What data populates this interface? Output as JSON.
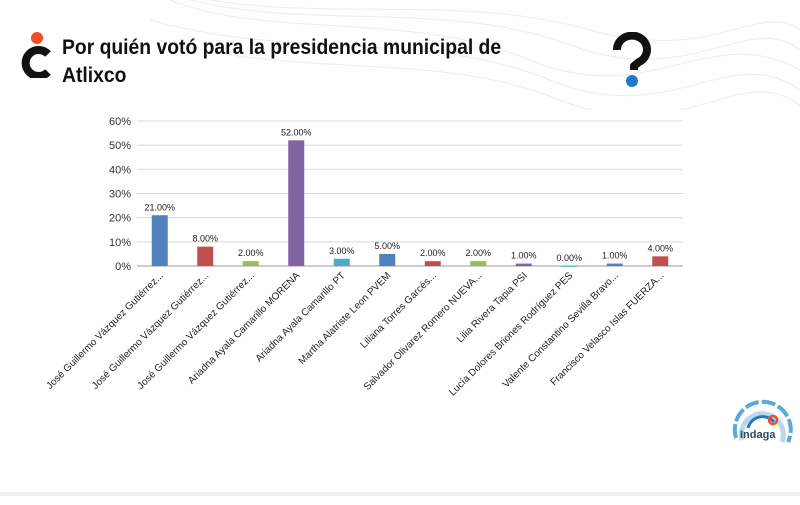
{
  "header": {
    "title": "Por quién votó para la presidencia municipal de Atlixco",
    "left_logo_icon": "inverted-question-mark-icon",
    "right_logo_icon": "question-mark-icon"
  },
  "brand": {
    "name": "Indaga",
    "logo_icon": "indaga-circles-logo-icon",
    "colors": {
      "dark": "#111111",
      "orange": "#f04e23",
      "blue": "#1f78c8",
      "light_blue": "#5aa9d6"
    }
  },
  "chart_data": {
    "type": "bar",
    "title": "",
    "xlabel": "",
    "ylabel": "",
    "ylim": [
      0,
      60
    ],
    "yticks": [
      "0%",
      "10%",
      "20%",
      "30%",
      "40%",
      "50%",
      "60%"
    ],
    "grid": true,
    "legend": "none",
    "categories": [
      "José Guillermo Vázquez Gutiérrez...",
      "José Guillermo Vázquez Gutiérrez...",
      "José Guillermo Vázquez Gutiérrez...",
      "Ariadna Ayala Camarillo MORENA",
      "Ariadna Ayala Camarillo PT",
      "Martha Alatriste Leon PVEM",
      "Liliana Torres Garcés...",
      "Salvador Olivarez Romero NUEVA...",
      "Lilia Rivera Tapia PSI",
      "Lucía Dolores Briones Rodríguez PES",
      "Valente Constantino Sevilla Bravo...",
      "Francisco Velasco Islas FUERZA..."
    ],
    "values": [
      21,
      8,
      2,
      52,
      3,
      5,
      2,
      2,
      1,
      0,
      1,
      4
    ],
    "data_labels": [
      "21.00%",
      "8.00%",
      "2.00%",
      "52.00%",
      "3.00%",
      "5.00%",
      "2.00%",
      "2.00%",
      "1.00%",
      "0.00%",
      "1.00%",
      "4.00%"
    ],
    "colors": [
      "#4f81bd",
      "#c0504d",
      "#9bbb59",
      "#8064a2",
      "#4bacc6",
      "#4f81bd",
      "#c0504d",
      "#9bbb59",
      "#8064a2",
      "#4bacc6",
      "#4f81bd",
      "#c0504d"
    ]
  }
}
